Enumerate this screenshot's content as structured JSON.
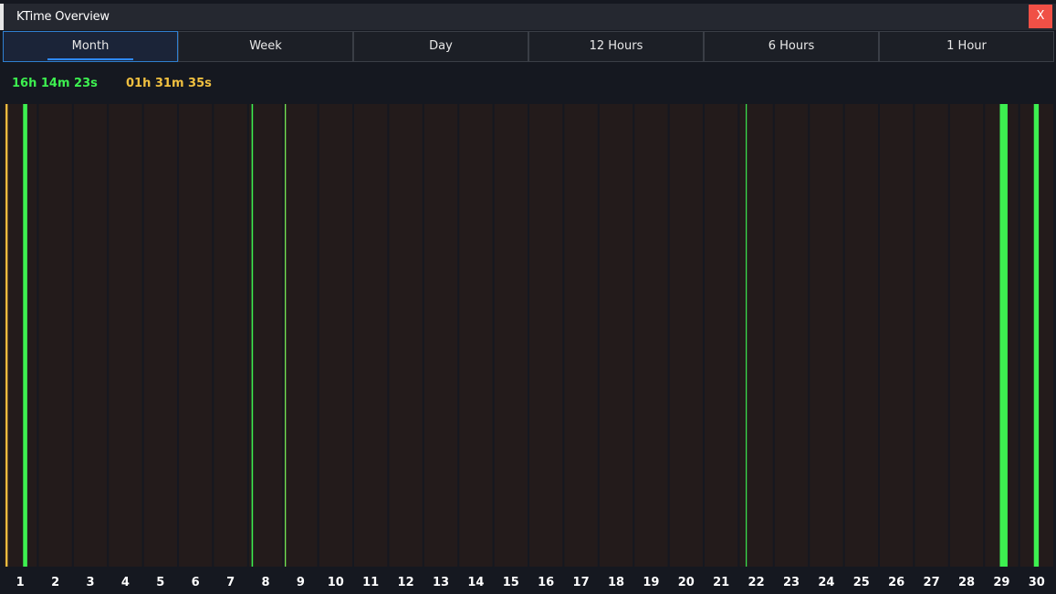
{
  "window": {
    "title": "KTime Overview",
    "close_label": "X"
  },
  "tabs": [
    {
      "label": "Month",
      "active": true
    },
    {
      "label": "Week",
      "active": false
    },
    {
      "label": "Day",
      "active": false
    },
    {
      "label": "12 Hours",
      "active": false
    },
    {
      "label": "6 Hours",
      "active": false
    },
    {
      "label": "1 Hour",
      "active": false
    }
  ],
  "stats": {
    "active_time": "16h 14m 23s",
    "idle_time": "01h 31m 35s"
  },
  "colors": {
    "active": "#3df050",
    "idle": "#f0c040",
    "active_bright": "#7cff5c",
    "column_bg": "#231b1b",
    "separator": "#151820",
    "tab_accent": "#2f89ff"
  },
  "chart_data": {
    "type": "bar",
    "categories": [
      "1",
      "2",
      "3",
      "4",
      "5",
      "6",
      "7",
      "8",
      "9",
      "10",
      "11",
      "12",
      "13",
      "14",
      "15",
      "16",
      "17",
      "18",
      "19",
      "20",
      "21",
      "22",
      "23",
      "24",
      "25",
      "26",
      "27",
      "28",
      "29",
      "30"
    ],
    "bars": [
      {
        "day": 1,
        "offset": 0.08,
        "width": 0.06,
        "kind": "idle"
      },
      {
        "day": 1,
        "offset": 0.58,
        "width": 0.12,
        "kind": "active"
      },
      {
        "day": 8,
        "offset": 0.1,
        "width": 0.04,
        "kind": "active"
      },
      {
        "day": 9,
        "offset": 0.05,
        "width": 0.03,
        "kind": "active_bright"
      },
      {
        "day": 22,
        "offset": 0.2,
        "width": 0.03,
        "kind": "active"
      },
      {
        "day": 29,
        "offset": 0.45,
        "width": 0.22,
        "kind": "active"
      },
      {
        "day": 30,
        "offset": 0.42,
        "width": 0.14,
        "kind": "active"
      }
    ]
  }
}
